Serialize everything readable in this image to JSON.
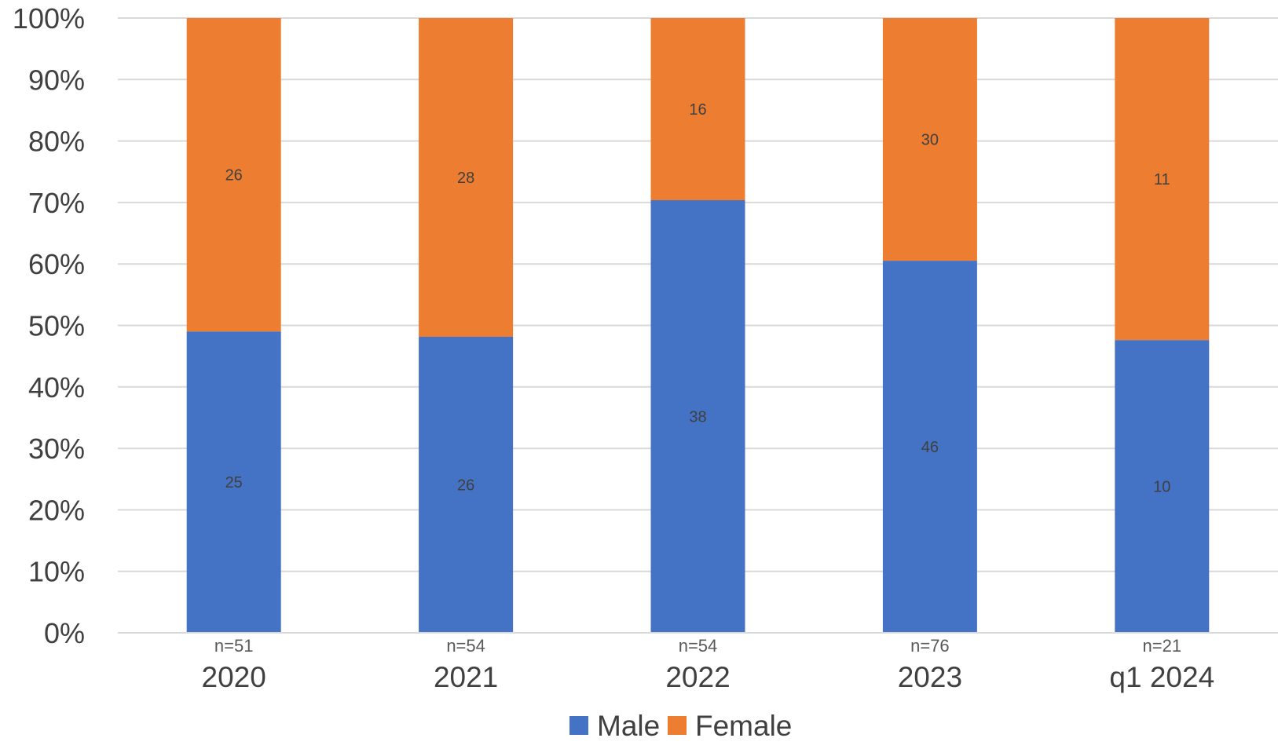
{
  "chart_data": {
    "type": "bar",
    "stacked": true,
    "normalized": true,
    "categories": [
      "2020",
      "2021",
      "2022",
      "2023",
      "q1 2024"
    ],
    "sample_sizes": [
      "n=51",
      "n=54",
      "n=54",
      "n=76",
      "n=21"
    ],
    "series": [
      {
        "name": "Male",
        "color": "#4472C4",
        "values": [
          25,
          26,
          38,
          46,
          10
        ]
      },
      {
        "name": "Female",
        "color": "#ED7D31",
        "values": [
          26,
          28,
          16,
          30,
          11
        ]
      }
    ],
    "y_ticks": [
      "0%",
      "10%",
      "20%",
      "30%",
      "40%",
      "50%",
      "60%",
      "70%",
      "80%",
      "90%",
      "100%"
    ],
    "ylim": [
      0,
      100
    ],
    "grid": true,
    "legend": "bottom",
    "title": "",
    "xlabel": "",
    "ylabel": ""
  }
}
